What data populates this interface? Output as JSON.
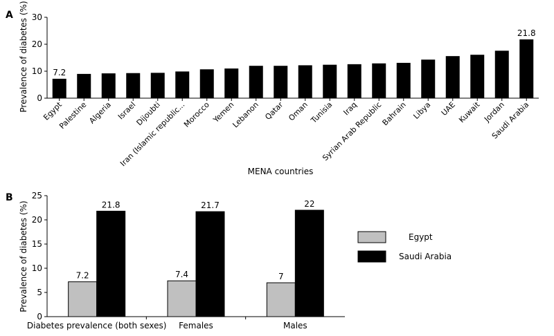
{
  "chart_data": [
    {
      "panel_label": "A",
      "type": "bar",
      "xlabel": "MENA countries",
      "ylabel": "Prevalence of diabetes (%)",
      "ylim": [
        0,
        30
      ],
      "yticks": [
        0,
        10,
        20,
        30
      ],
      "categories": [
        "Egypt",
        "Palestine",
        "Algeria",
        "Israel",
        "Dijoubti",
        "Iran (Islamic republic...",
        "Morocco",
        "Yemen",
        "Lebanon",
        "Qatar",
        "Oman",
        "Tunisia",
        "Iraq",
        "Syrian Arab Republic",
        "Bahrain",
        "Libya",
        "UAE",
        "Kuwait",
        "Jordan",
        "Saudi Arabia"
      ],
      "values": [
        7.2,
        9.0,
        9.2,
        9.3,
        9.4,
        9.9,
        10.7,
        11.0,
        12.0,
        12.0,
        12.2,
        12.4,
        12.6,
        12.9,
        13.1,
        14.3,
        15.6,
        16.1,
        17.6,
        21.8
      ],
      "data_labels": [
        "7.2",
        "",
        "",
        "",
        "",
        "",
        "",
        "",
        "",
        "",
        "",
        "",
        "",
        "",
        "",
        "",
        "",
        "",
        "",
        "21.8"
      ],
      "bar_color": "#000000",
      "grid": false
    },
    {
      "panel_label": "B",
      "type": "bar",
      "xlabel": "",
      "ylabel": "Prevalence of diabetes (%)",
      "ylim": [
        0,
        25
      ],
      "yticks": [
        0,
        5,
        10,
        15,
        20,
        25
      ],
      "categories": [
        "Diabetes prevalence (both sexes)",
        "Females",
        "Males"
      ],
      "series": [
        {
          "name": "Egypt",
          "values": [
            7.2,
            7.4,
            7
          ],
          "labels": [
            "7.2",
            "7.4",
            "7"
          ],
          "color": "#c0c0c0"
        },
        {
          "name": "Saudi Arabia",
          "values": [
            21.8,
            21.7,
            22
          ],
          "labels": [
            "21.8",
            "21.7",
            "22"
          ],
          "color": "#000000"
        }
      ],
      "legend_position": "right",
      "grid": false
    }
  ]
}
